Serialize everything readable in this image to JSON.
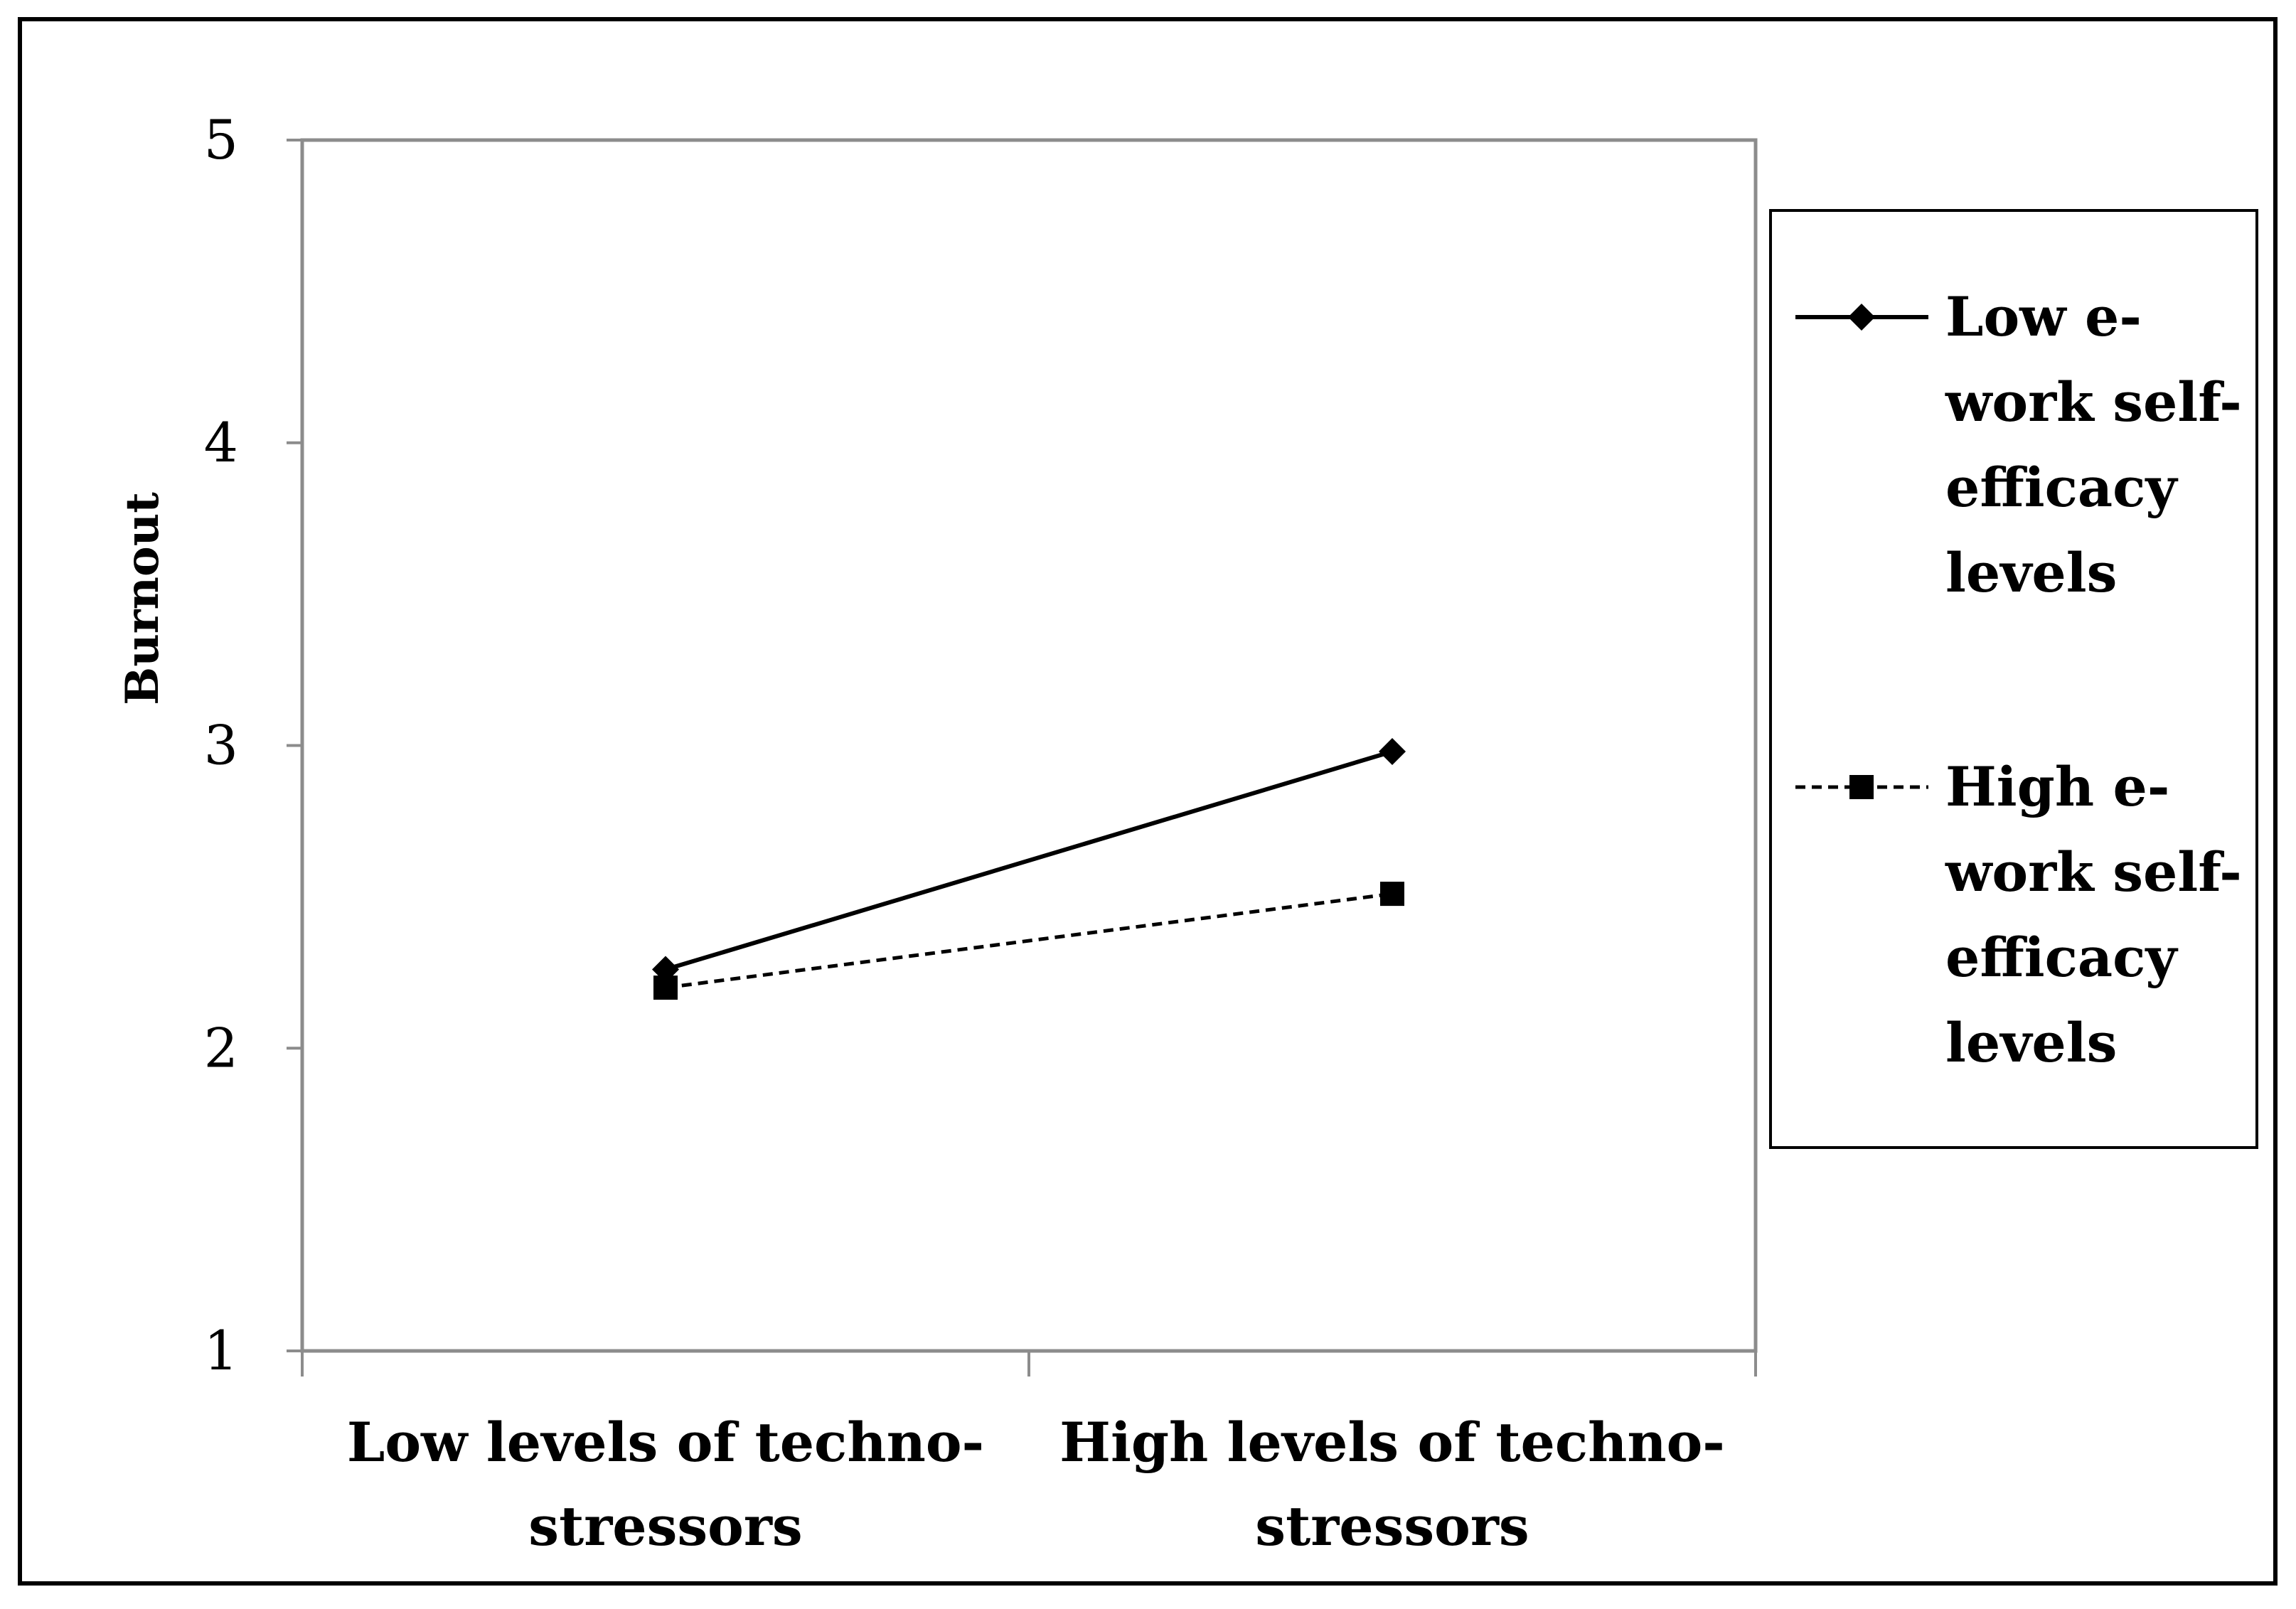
{
  "chart_data": {
    "type": "line",
    "title": "",
    "xlabel": "",
    "ylabel": "Burnout",
    "ylim": [
      1,
      5
    ],
    "yticks": [
      1,
      2,
      3,
      4,
      5
    ],
    "grid": false,
    "legend_position": "right",
    "categories": [
      [
        "Low levels of techno-",
        "stressors"
      ],
      [
        "High levels of techno-",
        "stressors"
      ]
    ],
    "series": [
      {
        "name": [
          "Low e-",
          "work self-",
          "efficacy",
          "levels"
        ],
        "values": [
          2.26,
          2.98
        ],
        "line_style": "solid",
        "marker": "diamond",
        "color": "#000000"
      },
      {
        "name": [
          "High e-",
          "work self-",
          "efficacy",
          "levels"
        ],
        "values": [
          2.2,
          2.51
        ],
        "line_style": "dashed",
        "marker": "square",
        "color": "#000000"
      }
    ]
  }
}
